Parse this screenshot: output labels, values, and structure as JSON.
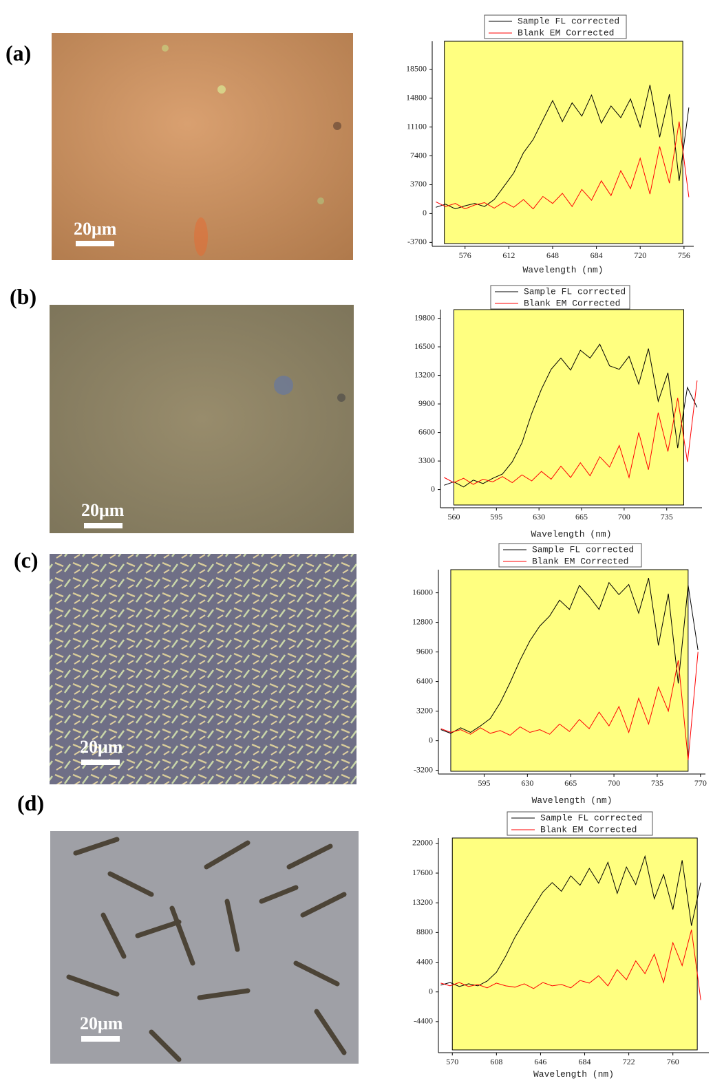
{
  "panels": [
    {
      "label": "(a)",
      "scale_bar": "20μm"
    },
    {
      "label": "(b)",
      "scale_bar": "20μm"
    },
    {
      "label": "(c)",
      "scale_bar": "20μm"
    },
    {
      "label": "(d)",
      "scale_bar": "20μm"
    }
  ],
  "chart_data": [
    {
      "type": "line",
      "x_label": "Wavelength (nm)",
      "xlim": [
        549,
        764
      ],
      "ylim": [
        -4200,
        22100
      ],
      "xticks": [
        576,
        612,
        648,
        684,
        720,
        756
      ],
      "yticks": [
        -3700,
        0,
        3700,
        7400,
        11100,
        14800,
        18500
      ],
      "shaded_region": {
        "xlim": [
          559,
          755
        ],
        "color": "#ffff80"
      },
      "x": [
        552,
        560,
        568,
        576,
        584,
        592,
        600,
        608,
        616,
        624,
        632,
        640,
        648,
        656,
        664,
        672,
        680,
        688,
        696,
        704,
        712,
        720,
        728,
        736,
        744,
        752,
        760
      ],
      "series": [
        {
          "name": "Sample FL corrected",
          "color": "#000000",
          "values": [
            800,
            1200,
            600,
            1000,
            1300,
            900,
            1800,
            3500,
            5200,
            7800,
            9500,
            12000,
            14500,
            11800,
            14200,
            12500,
            15200,
            11600,
            13800,
            12300,
            14700,
            11100,
            16500,
            9800,
            15300,
            4200,
            13600
          ]
        },
        {
          "name": "Blank EM Corrected",
          "color": "#ff0000",
          "values": [
            1500,
            900,
            1300,
            600,
            1100,
            1400,
            700,
            1500,
            800,
            1800,
            600,
            2200,
            1300,
            2600,
            900,
            3100,
            1700,
            4200,
            2300,
            5500,
            3200,
            7100,
            2500,
            8600,
            3900,
            11800,
            2100
          ]
        }
      ]
    },
    {
      "type": "line",
      "x_label": "Wavelength (nm)",
      "xlim": [
        549,
        764
      ],
      "ylim": [
        -2100,
        20800
      ],
      "xticks": [
        560,
        595,
        630,
        665,
        700,
        735
      ],
      "yticks": [
        0,
        3300,
        6600,
        9900,
        13200,
        16500,
        19800
      ],
      "shaded_region": {
        "xlim": [
          560,
          749
        ],
        "color": "#ffff80"
      },
      "x": [
        552,
        560,
        568,
        576,
        584,
        592,
        600,
        608,
        616,
        624,
        632,
        640,
        648,
        656,
        664,
        672,
        680,
        688,
        696,
        704,
        712,
        720,
        728,
        736,
        744,
        752,
        760
      ],
      "series": [
        {
          "name": "Sample FL corrected",
          "color": "#000000",
          "values": [
            500,
            900,
            300,
            1100,
            700,
            1300,
            1800,
            3200,
            5400,
            8800,
            11600,
            13900,
            15200,
            13800,
            16100,
            15200,
            16800,
            14300,
            13900,
            15400,
            12200,
            16300,
            10200,
            13500,
            4800,
            11800,
            9500
          ]
        },
        {
          "name": "Blank EM Corrected",
          "color": "#ff0000",
          "values": [
            1400,
            800,
            1300,
            600,
            1200,
            900,
            1500,
            800,
            1700,
            1000,
            2100,
            1200,
            2700,
            1400,
            3100,
            1600,
            3800,
            2600,
            5100,
            1400,
            6600,
            2300,
            8900,
            4400,
            10600,
            3200,
            12600
          ]
        }
      ]
    },
    {
      "type": "line",
      "x_label": "Wavelength (nm)",
      "xlim": [
        558,
        774
      ],
      "ylim": [
        -3600,
        18500
      ],
      "xticks": [
        595,
        630,
        665,
        700,
        735,
        770
      ],
      "yticks": [
        -3200,
        0,
        3200,
        6400,
        9600,
        12800,
        16000
      ],
      "shaded_region": {
        "xlim": [
          568,
          760
        ],
        "color": "#ffff80"
      },
      "x": [
        560,
        568,
        576,
        584,
        592,
        600,
        608,
        616,
        624,
        632,
        640,
        648,
        656,
        664,
        672,
        680,
        688,
        696,
        704,
        712,
        720,
        728,
        736,
        744,
        752,
        760,
        768
      ],
      "series": [
        {
          "name": "Sample FL corrected",
          "color": "#000000",
          "values": [
            1200,
            800,
            1400,
            900,
            1600,
            2400,
            4100,
            6300,
            8700,
            10800,
            12400,
            13500,
            15200,
            14200,
            16800,
            15600,
            14200,
            17100,
            15800,
            16900,
            13800,
            17600,
            10300,
            15900,
            6200,
            16800,
            9800
          ]
        },
        {
          "name": "Blank EM Corrected",
          "color": "#ff0000",
          "values": [
            1300,
            900,
            1200,
            700,
            1400,
            800,
            1100,
            600,
            1500,
            900,
            1200,
            700,
            1800,
            1000,
            2300,
            1300,
            3100,
            1600,
            3700,
            900,
            4600,
            1800,
            5800,
            3200,
            8700,
            -2100,
            9600
          ]
        }
      ]
    },
    {
      "type": "line",
      "x_label": "Wavelength (nm)",
      "xlim": [
        558,
        791
      ],
      "ylim": [
        -9000,
        22800
      ],
      "xticks": [
        570,
        608,
        646,
        684,
        722,
        760
      ],
      "yticks": [
        -4400,
        0,
        4400,
        8800,
        13200,
        17600,
        22000
      ],
      "shaded_region": {
        "xlim": [
          570,
          781
        ],
        "color": "#ffff80"
      },
      "x": [
        560,
        568,
        576,
        584,
        592,
        600,
        608,
        616,
        624,
        632,
        640,
        648,
        656,
        664,
        672,
        680,
        688,
        696,
        704,
        712,
        720,
        728,
        736,
        744,
        752,
        760,
        768,
        776,
        784
      ],
      "series": [
        {
          "name": "Sample FL corrected",
          "color": "#000000",
          "values": [
            1000,
            1400,
            800,
            1200,
            900,
            1600,
            2900,
            5300,
            8100,
            10400,
            12600,
            14800,
            16200,
            14900,
            17200,
            15800,
            18300,
            16100,
            19200,
            14600,
            18500,
            15900,
            20100,
            13800,
            17400,
            12200,
            19500,
            9800,
            16200
          ]
        },
        {
          "name": "Blank EM Corrected",
          "color": "#ff0000",
          "values": [
            1300,
            900,
            1400,
            800,
            1100,
            600,
            1300,
            900,
            700,
            1200,
            500,
            1400,
            900,
            1100,
            600,
            1700,
            1300,
            2400,
            900,
            3300,
            1800,
            4600,
            2700,
            5600,
            1400,
            7300,
            3900,
            9200,
            -1200
          ]
        }
      ]
    }
  ]
}
